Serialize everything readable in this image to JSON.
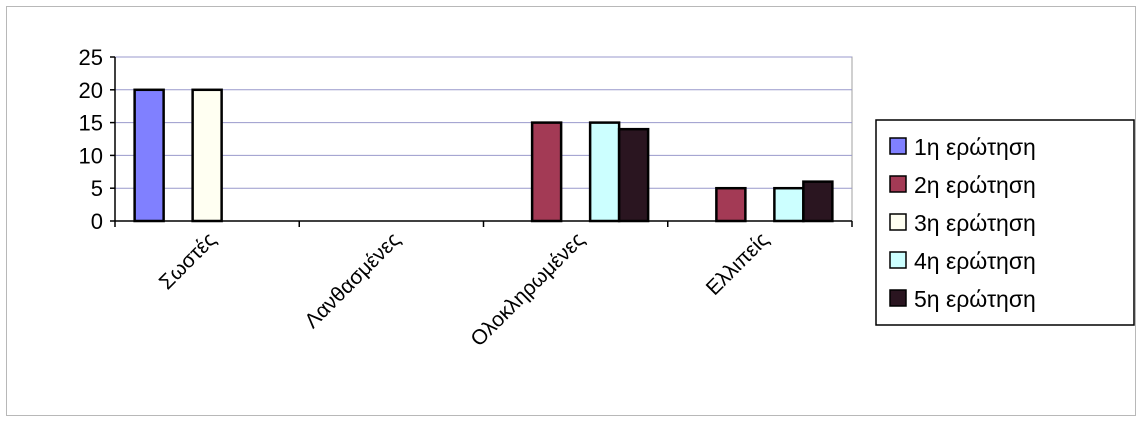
{
  "chart_data": {
    "type": "bar",
    "categories": [
      "Σωστές",
      "Λανθασμένες",
      "Ολοκληρωμένες",
      "Ελλιπείς"
    ],
    "series": [
      {
        "name": "1η ερώτηση",
        "color": "#8080ff",
        "values": [
          20,
          0,
          0,
          0
        ]
      },
      {
        "name": "2η ερώτηση",
        "color": "#a33a55",
        "values": [
          0,
          0,
          15,
          5
        ]
      },
      {
        "name": "3η ερώτηση",
        "color": "#fffff2",
        "values": [
          20,
          0,
          0,
          0
        ]
      },
      {
        "name": "4η ερώτηση",
        "color": "#ccffff",
        "values": [
          0,
          0,
          15,
          5
        ]
      },
      {
        "name": "5η ερώτηση",
        "color": "#2a1520",
        "values": [
          0,
          0,
          14,
          6
        ]
      }
    ],
    "yticks": [
      0,
      5,
      10,
      15,
      20,
      25
    ],
    "ylim": [
      0,
      25
    ],
    "grid": true,
    "legend": "right",
    "plot_background": "#ffffff",
    "gridline_color": "#9999cc"
  }
}
